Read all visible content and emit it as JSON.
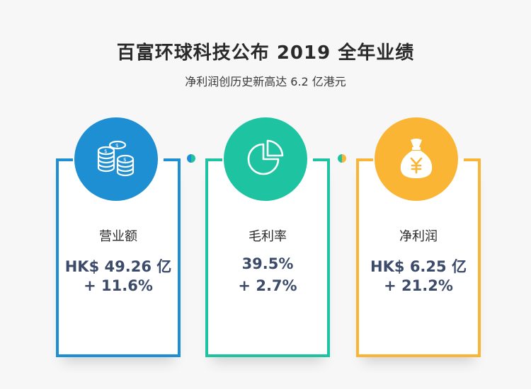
{
  "header": {
    "title": "百富环球科技公布 2019 全年业绩",
    "subtitle": "净利润创历史新高达 6.2 亿港元"
  },
  "cards": [
    {
      "icon": "coin-stack-icon",
      "color": "#1e8fd2",
      "label": "营业额",
      "value": "HK$ 49.26 亿",
      "change": "+ 11.6%"
    },
    {
      "icon": "pie-chart-icon",
      "color": "#1ec4a2",
      "label": "毛利率",
      "value": "39.5%",
      "change": "+ 2.7%"
    },
    {
      "icon": "money-bag-icon",
      "color": "#fbb535",
      "label": "净利润",
      "value": "HK$ 6.25 亿",
      "change": "+ 21.2%"
    }
  ]
}
